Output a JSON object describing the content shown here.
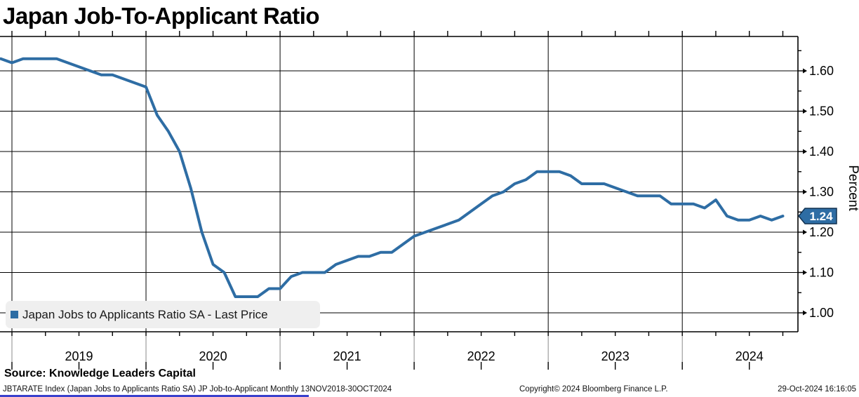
{
  "title": "Japan Job-To-Applicant Ratio",
  "legend": {
    "label": "Japan Jobs to Applicants Ratio SA - Last Price"
  },
  "source_line": "Source: Knowledge Leaders Capital",
  "footer": {
    "left": "JBTARATE Index (Japan Jobs to Applicants Ratio SA) JP Job-to-Applicant  Monthly 13NOV2018-30OCT2024",
    "center": "Copyright© 2024 Bloomberg Finance L.P.",
    "right": "29-Oct-2024 16:16:05"
  },
  "colors": {
    "line": "#2E6DA4",
    "tag_fill": "#2E6DA4",
    "tag_border": "#10304F",
    "legend_bg": "#EFEFEF",
    "grid": "#000000",
    "grid_extension": "#8A8A8A",
    "footer_bar": "#3A41CC"
  },
  "chart_data": {
    "type": "line",
    "title": "Japan Job-To-Applicant Ratio",
    "ylabel": "Percent",
    "xlabel": "",
    "grid": true,
    "legend_position": "bottom-left",
    "last_price": 1.24,
    "y_ticks": [
      1.0,
      1.1,
      1.2,
      1.3,
      1.4,
      1.5,
      1.6
    ],
    "ylim": [
      0.95,
      1.67
    ],
    "x_year_labels": [
      "2019",
      "2020",
      "2021",
      "2022",
      "2023",
      "2024"
    ],
    "x_range_label": "13NOV2018-30OCT2024",
    "frequency": "monthly",
    "series": [
      {
        "name": "Japan Jobs to Applicants Ratio SA - Last Price",
        "start": "2018-11",
        "values": [
          1.63,
          1.62,
          1.63,
          1.63,
          1.63,
          1.63,
          1.62,
          1.61,
          1.6,
          1.59,
          1.59,
          1.58,
          1.57,
          1.56,
          1.49,
          1.45,
          1.4,
          1.31,
          1.2,
          1.12,
          1.1,
          1.04,
          1.04,
          1.04,
          1.06,
          1.06,
          1.09,
          1.1,
          1.1,
          1.1,
          1.12,
          1.13,
          1.14,
          1.14,
          1.15,
          1.15,
          1.17,
          1.19,
          1.2,
          1.21,
          1.22,
          1.23,
          1.25,
          1.27,
          1.29,
          1.3,
          1.32,
          1.33,
          1.35,
          1.35,
          1.35,
          1.34,
          1.32,
          1.32,
          1.32,
          1.31,
          1.3,
          1.29,
          1.29,
          1.29,
          1.27,
          1.27,
          1.27,
          1.26,
          1.28,
          1.24,
          1.23,
          1.23,
          1.24,
          1.23,
          1.24
        ]
      }
    ]
  }
}
